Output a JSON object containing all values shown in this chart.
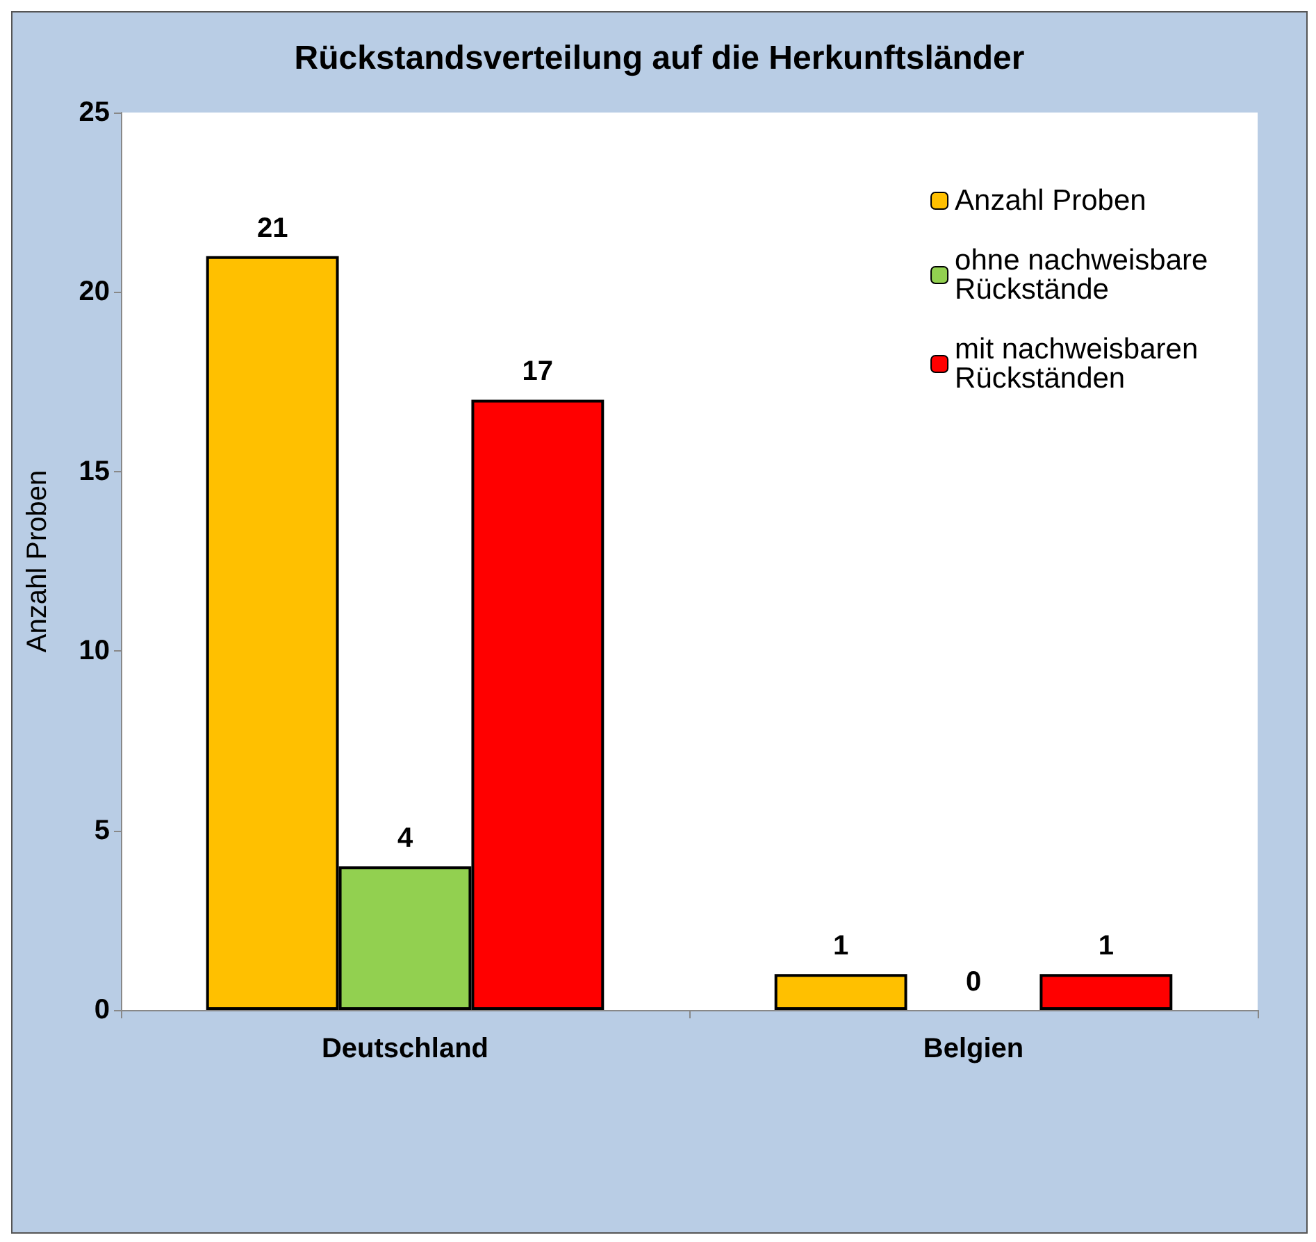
{
  "chart_data": {
    "type": "bar",
    "title": "Rückstandsverteilung auf die Herkunftsländer",
    "ylabel": "Anzahl Proben",
    "categories": [
      "Deutschland",
      "Belgien"
    ],
    "series": [
      {
        "name": "Anzahl Proben",
        "color": "#ffc000",
        "values": [
          21,
          1
        ]
      },
      {
        "name": "ohne nachweisbare Rückstände",
        "color": "#92d050",
        "values": [
          4,
          0
        ]
      },
      {
        "name": "mit nachweisbaren Rückständen",
        "color": "#ff0000",
        "values": [
          17,
          1
        ]
      }
    ],
    "ylim": [
      0,
      25
    ],
    "yticks": [
      0,
      5,
      10,
      15,
      20,
      25
    ],
    "grid": false,
    "legend": "top right",
    "data_labels": true
  }
}
